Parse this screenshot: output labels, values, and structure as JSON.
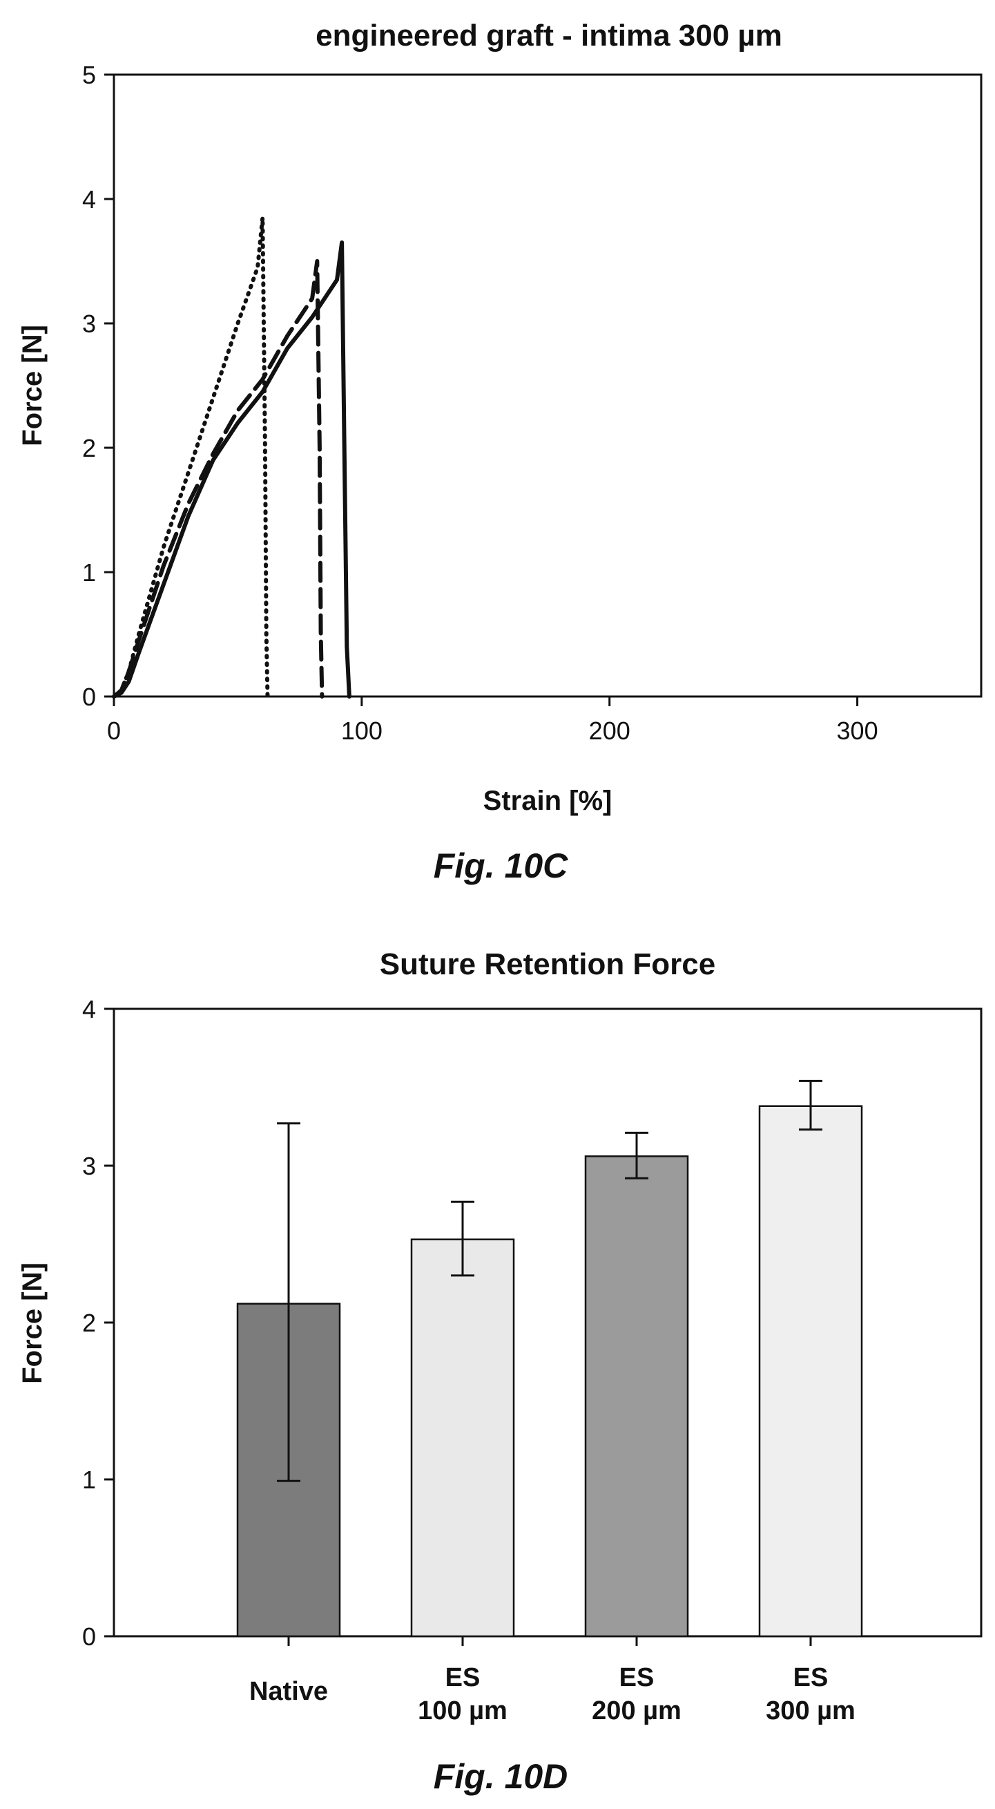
{
  "chart_data": [
    {
      "type": "line",
      "title": "engineered graft - intima 300 µm",
      "xlabel": "Strain [%]",
      "ylabel": "Force [N]",
      "xlim": [
        0,
        350
      ],
      "ylim": [
        0,
        5
      ],
      "xticks": [
        "0",
        "100",
        "200",
        "300"
      ],
      "yticks": [
        "0",
        "1",
        "2",
        "3",
        "4",
        "5"
      ],
      "grid": false,
      "series": [
        {
          "line_style": "dotted",
          "x": [
            0,
            3,
            6,
            10,
            20,
            30,
            40,
            50,
            58,
            60,
            61,
            61.5,
            62
          ],
          "y": [
            0,
            0.05,
            0.2,
            0.5,
            1.2,
            1.8,
            2.4,
            3.0,
            3.45,
            3.85,
            2.0,
            0.5,
            0
          ]
        },
        {
          "line_style": "dashed",
          "x": [
            0,
            3,
            6,
            10,
            20,
            30,
            40,
            50,
            60,
            70,
            80,
            82,
            83,
            83.5,
            84
          ],
          "y": [
            0,
            0.05,
            0.2,
            0.45,
            1.05,
            1.55,
            1.95,
            2.3,
            2.55,
            2.9,
            3.2,
            3.5,
            2.0,
            0.5,
            0
          ]
        },
        {
          "line_style": "solid",
          "x": [
            0,
            3,
            6,
            10,
            20,
            30,
            40,
            50,
            60,
            70,
            80,
            90,
            92,
            93,
            94,
            95
          ],
          "y": [
            0,
            0.03,
            0.12,
            0.35,
            0.9,
            1.45,
            1.9,
            2.2,
            2.45,
            2.8,
            3.05,
            3.35,
            3.65,
            2.0,
            0.4,
            0
          ]
        }
      ],
      "caption": "Fig. 10C"
    },
    {
      "type": "bar",
      "title": "Suture Retention Force",
      "xlabel": "",
      "ylabel": "Force [N]",
      "ylim": [
        0,
        4
      ],
      "yticks": [
        "0",
        "1",
        "2",
        "3",
        "4"
      ],
      "grid": false,
      "categories": [
        [
          "Native"
        ],
        [
          "ES",
          "100 µm"
        ],
        [
          "ES",
          "200 µm"
        ],
        [
          "ES",
          "300 µm"
        ]
      ],
      "values": [
        2.12,
        2.53,
        3.06,
        3.38
      ],
      "error_low": [
        0.99,
        2.3,
        2.92,
        3.23
      ],
      "error_high": [
        3.27,
        2.77,
        3.21,
        3.54
      ],
      "bar_colors": [
        "#7c7c7c",
        "#e9e9e9",
        "#9b9b9b",
        "#efefef"
      ],
      "caption": "Fig. 10D"
    }
  ]
}
